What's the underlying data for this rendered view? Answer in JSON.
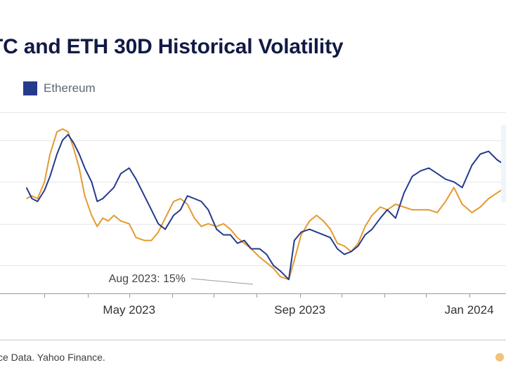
{
  "title": "TC and ETH 30D Historical Volatility",
  "legend": {
    "label": "Ethereum",
    "color": "#263a8c"
  },
  "annotation": {
    "text": "Aug 2023: 15%"
  },
  "source": "ce Data. Yahoo Finance.",
  "colors": {
    "eth": "#263a8c",
    "btc": "#e59a2e",
    "grid": "#e6e6e6",
    "axis": "#9a9a9a"
  },
  "chart_data": {
    "type": "line",
    "title": "TC and ETH 30D Historical Volatility",
    "x_tick_labels": [
      "May 2023",
      "Sep 2023",
      "Jan 2024"
    ],
    "grid": true,
    "legend_position": "top-left",
    "series": [
      {
        "name": "Ethereum",
        "color": "#263a8c",
        "x": [
          "2023-02-16",
          "2023-02-20",
          "2023-02-24",
          "2023-03-01",
          "2023-03-05",
          "2023-03-10",
          "2023-03-14",
          "2023-03-18",
          "2023-03-22",
          "2023-03-26",
          "2023-03-30",
          "2023-04-04",
          "2023-04-08",
          "2023-04-12",
          "2023-04-16",
          "2023-04-20",
          "2023-04-25",
          "2023-05-01",
          "2023-05-06",
          "2023-05-12",
          "2023-05-17",
          "2023-05-22",
          "2023-05-27",
          "2023-06-02",
          "2023-06-07",
          "2023-06-12",
          "2023-06-17",
          "2023-06-22",
          "2023-06-27",
          "2023-07-03",
          "2023-07-08",
          "2023-07-13",
          "2023-07-18",
          "2023-07-23",
          "2023-07-28",
          "2023-08-03",
          "2023-08-08",
          "2023-08-13",
          "2023-08-18",
          "2023-08-24",
          "2023-08-28",
          "2023-09-02",
          "2023-09-08",
          "2023-09-13",
          "2023-09-18",
          "2023-09-23",
          "2023-09-28",
          "2023-10-03",
          "2023-10-08",
          "2023-10-13",
          "2023-10-18",
          "2023-10-23",
          "2023-10-29",
          "2023-11-03",
          "2023-11-09",
          "2023-11-15",
          "2023-11-21",
          "2023-11-27",
          "2023-12-03",
          "2023-12-09",
          "2023-12-15",
          "2023-12-21",
          "2023-12-27",
          "2024-01-03",
          "2024-01-09",
          "2024-01-15",
          "2024-01-21",
          "2024-01-27",
          "2024-02-02",
          "2024-02-07",
          "2024-02-11"
        ],
        "values": [
          48,
          44,
          43,
          47,
          52,
          60,
          65,
          67,
          64,
          60,
          55,
          50,
          43,
          44,
          46,
          48,
          53,
          55,
          51,
          45,
          40,
          35,
          33,
          38,
          40,
          45,
          44,
          43,
          40,
          33,
          31,
          31,
          28,
          29,
          26,
          26,
          24,
          20,
          18,
          15,
          29,
          32,
          33,
          32,
          31,
          30,
          26,
          24,
          25,
          27,
          31,
          33,
          37,
          40,
          37,
          46,
          52,
          54,
          55,
          53,
          51,
          50,
          48,
          56,
          60,
          61,
          58,
          56,
          60,
          62,
          51
        ]
      },
      {
        "name": "",
        "color": "#e59a2e",
        "x": [
          "2023-02-16",
          "2023-02-20",
          "2023-02-24",
          "2023-03-01",
          "2023-03-05",
          "2023-03-10",
          "2023-03-14",
          "2023-03-18",
          "2023-03-22",
          "2023-03-26",
          "2023-03-30",
          "2023-04-04",
          "2023-04-08",
          "2023-04-12",
          "2023-04-16",
          "2023-04-20",
          "2023-04-25",
          "2023-05-01",
          "2023-05-06",
          "2023-05-12",
          "2023-05-17",
          "2023-05-22",
          "2023-05-27",
          "2023-06-02",
          "2023-06-07",
          "2023-06-12",
          "2023-06-17",
          "2023-06-22",
          "2023-06-27",
          "2023-07-03",
          "2023-07-08",
          "2023-07-13",
          "2023-07-18",
          "2023-07-23",
          "2023-07-28",
          "2023-08-03",
          "2023-08-08",
          "2023-08-13",
          "2023-08-18",
          "2023-08-24",
          "2023-08-28",
          "2023-09-02",
          "2023-09-08",
          "2023-09-13",
          "2023-09-18",
          "2023-09-23",
          "2023-09-28",
          "2023-10-03",
          "2023-10-08",
          "2023-10-13",
          "2023-10-18",
          "2023-10-23",
          "2023-10-29",
          "2023-11-03",
          "2023-11-09",
          "2023-11-15",
          "2023-11-21",
          "2023-11-27",
          "2023-12-03",
          "2023-12-09",
          "2023-12-15",
          "2023-12-21",
          "2023-12-27",
          "2024-01-03",
          "2024-01-09",
          "2024-01-15",
          "2024-01-21",
          "2024-01-27",
          "2024-02-02",
          "2024-02-07",
          "2024-02-11"
        ],
        "values": [
          44,
          45,
          44,
          50,
          60,
          68,
          69,
          68,
          62,
          55,
          45,
          38,
          34,
          37,
          36,
          38,
          36,
          35,
          30,
          29,
          29,
          32,
          37,
          43,
          44,
          42,
          37,
          34,
          35,
          34,
          35,
          33,
          30,
          28,
          26,
          23,
          21,
          19,
          16,
          15,
          22,
          31,
          36,
          38,
          36,
          33,
          28,
          27,
          25,
          28,
          34,
          38,
          41,
          40,
          42,
          41,
          40,
          40,
          40,
          39,
          43,
          48,
          42,
          39,
          41,
          44,
          46,
          48,
          47,
          45,
          37
        ]
      }
    ]
  }
}
